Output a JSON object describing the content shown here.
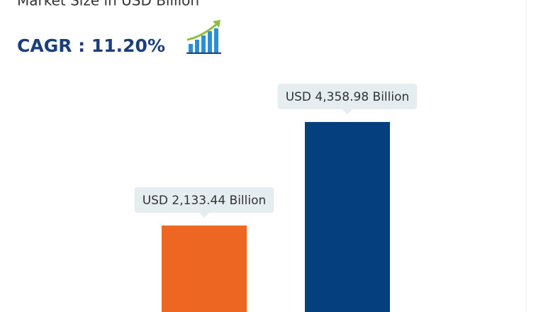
{
  "chart_data": {
    "type": "bar",
    "title": "Market Size in USD Billion",
    "subtitle": "CAGR : 11.20%",
    "categories": [
      null,
      null
    ],
    "values": [
      2133.44,
      4358.98
    ],
    "value_labels": [
      "USD 2,133.44 Billion",
      "USD 4,358.98 Billion"
    ],
    "colors": [
      "#ee6722",
      "#053f7d"
    ],
    "ylim": [
      0,
      5000
    ]
  }
}
